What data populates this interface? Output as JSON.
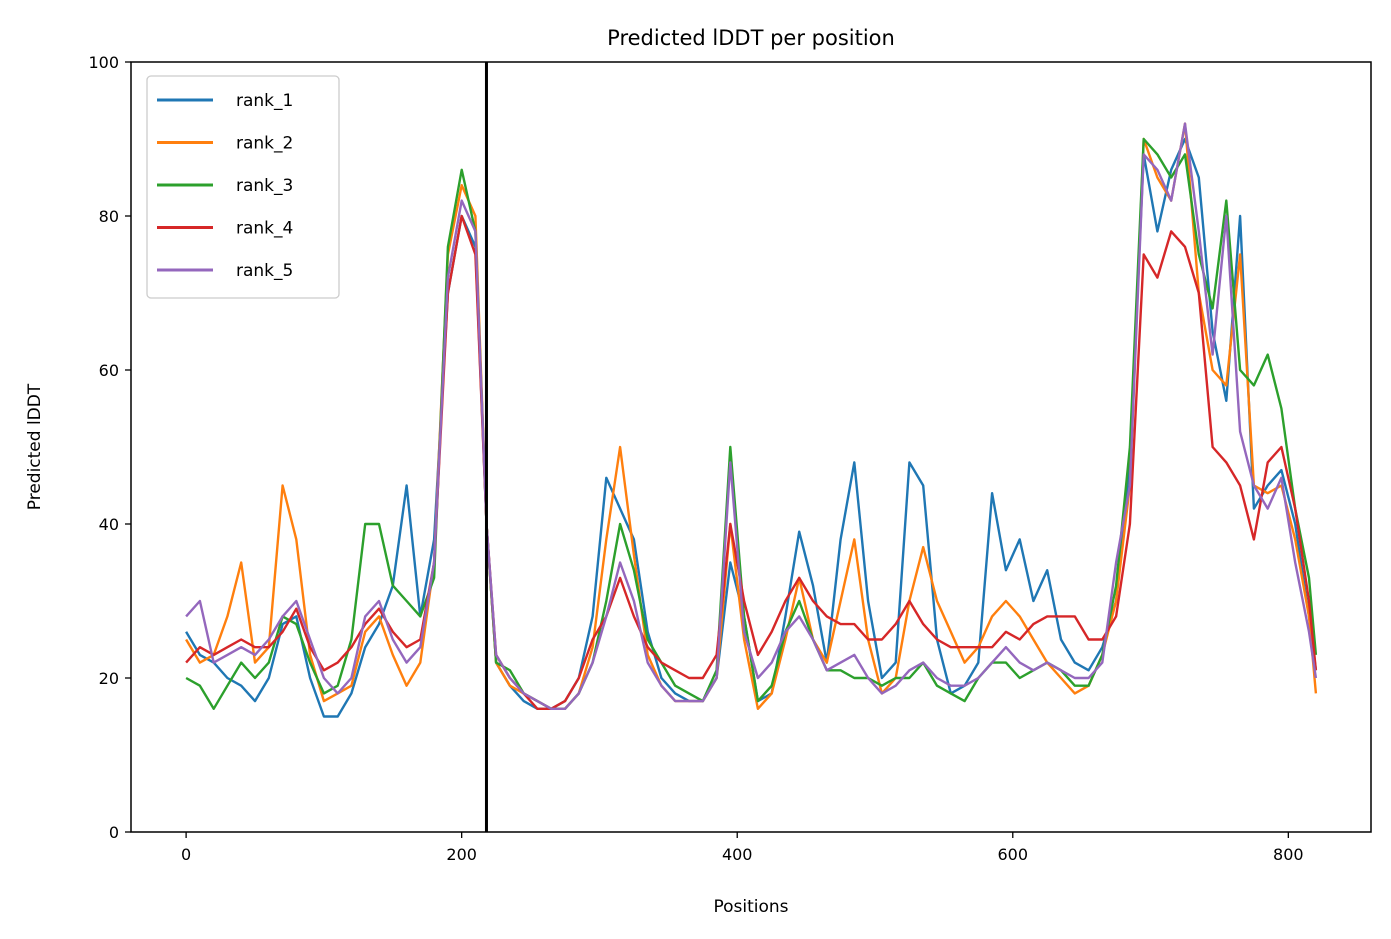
{
  "chart_data": {
    "type": "line",
    "title": "Predicted lDDT per position",
    "xlabel": "Positions",
    "ylabel": "Predicted lDDT",
    "xlim": [
      -40,
      860
    ],
    "ylim": [
      0,
      100
    ],
    "xticks": [
      0,
      200,
      400,
      600,
      800
    ],
    "yticks": [
      0,
      20,
      40,
      60,
      80,
      100
    ],
    "vline_x": 218,
    "legend_position": "upper-left",
    "grid": false,
    "x": [
      0,
      10,
      20,
      30,
      40,
      50,
      60,
      70,
      80,
      90,
      100,
      110,
      120,
      130,
      140,
      150,
      160,
      170,
      180,
      190,
      200,
      210,
      218,
      225,
      235,
      245,
      255,
      265,
      275,
      285,
      295,
      305,
      315,
      325,
      335,
      345,
      355,
      365,
      375,
      385,
      395,
      405,
      415,
      425,
      435,
      445,
      455,
      465,
      475,
      485,
      495,
      505,
      515,
      525,
      535,
      545,
      555,
      565,
      575,
      585,
      595,
      605,
      615,
      625,
      635,
      645,
      655,
      665,
      675,
      685,
      695,
      705,
      715,
      725,
      735,
      745,
      755,
      765,
      775,
      785,
      795,
      805,
      815,
      820
    ],
    "series": [
      {
        "name": "rank_1",
        "color": "#1f77b4",
        "values": [
          26,
          23,
          22,
          20,
          19,
          17,
          20,
          27,
          28,
          20,
          15,
          15,
          18,
          24,
          27,
          32,
          45,
          28,
          38,
          70,
          80,
          76,
          40,
          22,
          19,
          17,
          16,
          16,
          17,
          20,
          28,
          46,
          42,
          38,
          26,
          20,
          18,
          17,
          17,
          20,
          35,
          28,
          17,
          18,
          28,
          39,
          32,
          22,
          38,
          48,
          30,
          20,
          22,
          48,
          45,
          25,
          18,
          19,
          22,
          44,
          34,
          38,
          30,
          34,
          25,
          22,
          21,
          24,
          30,
          48,
          88,
          78,
          86,
          90,
          85,
          65,
          56,
          80,
          42,
          45,
          47,
          40,
          28,
          21
        ]
      },
      {
        "name": "rank_2",
        "color": "#ff7f0e",
        "values": [
          25,
          22,
          23,
          28,
          35,
          22,
          24,
          45,
          38,
          23,
          17,
          18,
          19,
          26,
          28,
          23,
          19,
          22,
          35,
          75,
          84,
          80,
          40,
          22,
          19,
          18,
          17,
          16,
          16,
          18,
          24,
          38,
          50,
          36,
          23,
          19,
          17,
          17,
          17,
          20,
          40,
          25,
          16,
          18,
          25,
          33,
          25,
          22,
          30,
          38,
          25,
          18,
          20,
          30,
          37,
          30,
          26,
          22,
          24,
          28,
          30,
          28,
          25,
          22,
          20,
          18,
          19,
          23,
          30,
          45,
          90,
          85,
          82,
          92,
          70,
          60,
          58,
          75,
          45,
          44,
          45,
          38,
          28,
          18
        ]
      },
      {
        "name": "rank_3",
        "color": "#2ca02c",
        "values": [
          20,
          19,
          16,
          19,
          22,
          20,
          22,
          28,
          27,
          22,
          18,
          19,
          25,
          40,
          40,
          32,
          30,
          28,
          33,
          76,
          86,
          78,
          40,
          22,
          21,
          18,
          17,
          16,
          16,
          18,
          22,
          30,
          40,
          34,
          25,
          22,
          19,
          18,
          17,
          21,
          50,
          28,
          17,
          19,
          26,
          30,
          25,
          21,
          21,
          20,
          20,
          19,
          20,
          20,
          22,
          19,
          18,
          17,
          20,
          22,
          22,
          20,
          21,
          22,
          21,
          19,
          19,
          23,
          32,
          50,
          90,
          88,
          85,
          88,
          75,
          68,
          82,
          60,
          58,
          62,
          55,
          42,
          33,
          23
        ]
      },
      {
        "name": "rank_4",
        "color": "#d62728",
        "values": [
          22,
          24,
          23,
          24,
          25,
          24,
          24,
          26,
          29,
          24,
          21,
          22,
          24,
          27,
          29,
          26,
          24,
          25,
          35,
          70,
          80,
          75,
          40,
          23,
          20,
          18,
          16,
          16,
          17,
          20,
          25,
          28,
          33,
          28,
          24,
          22,
          21,
          20,
          20,
          23,
          40,
          30,
          23,
          26,
          30,
          33,
          30,
          28,
          27,
          27,
          25,
          25,
          27,
          30,
          27,
          25,
          24,
          24,
          24,
          24,
          26,
          25,
          27,
          28,
          28,
          28,
          25,
          25,
          28,
          40,
          75,
          72,
          78,
          76,
          70,
          50,
          48,
          45,
          38,
          48,
          50,
          42,
          30,
          21
        ]
      },
      {
        "name": "rank_5",
        "color": "#9467bd",
        "values": [
          28,
          30,
          22,
          23,
          24,
          23,
          25,
          28,
          30,
          25,
          20,
          18,
          20,
          28,
          30,
          25,
          22,
          24,
          35,
          72,
          82,
          78,
          40,
          23,
          20,
          18,
          17,
          16,
          16,
          18,
          22,
          28,
          35,
          30,
          22,
          19,
          17,
          17,
          17,
          20,
          48,
          26,
          20,
          22,
          26,
          28,
          25,
          21,
          22,
          23,
          20,
          18,
          19,
          21,
          22,
          20,
          19,
          19,
          20,
          22,
          24,
          22,
          21,
          22,
          21,
          20,
          20,
          22,
          35,
          45,
          88,
          86,
          82,
          92,
          78,
          62,
          80,
          52,
          45,
          42,
          46,
          35,
          26,
          20
        ]
      }
    ]
  }
}
